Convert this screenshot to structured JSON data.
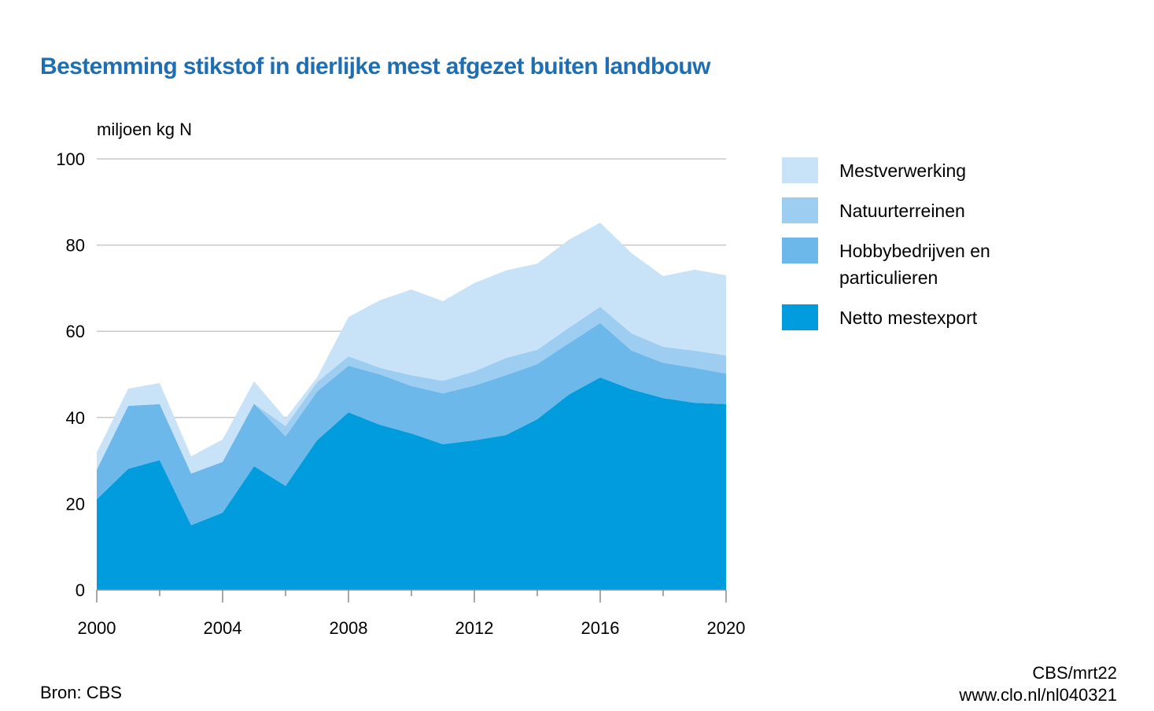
{
  "chart_data": {
    "type": "area",
    "stacked": true,
    "title": "Bestemming stikstof in dierlijke mest afgezet buiten landbouw",
    "ylabel": "miljoen kg N",
    "xlabel": "",
    "x": [
      2000,
      2001,
      2002,
      2003,
      2004,
      2005,
      2006,
      2007,
      2008,
      2009,
      2010,
      2011,
      2012,
      2013,
      2014,
      2015,
      2016,
      2017,
      2018,
      2019,
      2020
    ],
    "xlim": [
      2000,
      2020
    ],
    "ylim": [
      0,
      100
    ],
    "x_ticks": [
      "2000",
      "2004",
      "2008",
      "2012",
      "2016",
      "2020"
    ],
    "y_ticks": [
      "0",
      "20",
      "40",
      "60",
      "80",
      "100"
    ],
    "grid": "horizontal",
    "legend_position": "right",
    "series": [
      {
        "name": "Netto mestexport",
        "color": "#009cde",
        "values": [
          21.0,
          28.1,
          30.1,
          15.0,
          17.9,
          28.7,
          24.1,
          34.7,
          41.2,
          38.3,
          36.3,
          33.8,
          34.7,
          35.9,
          39.6,
          45.3,
          49.3,
          46.5,
          44.5,
          43.4,
          43.1
        ]
      },
      {
        "name": "Hobbybedrijven en particulieren",
        "color": "#6cb8ea",
        "values": [
          6.9,
          14.6,
          13.0,
          12.0,
          11.8,
          14.5,
          11.5,
          11.3,
          10.8,
          11.7,
          11.0,
          11.8,
          12.7,
          13.9,
          12.8,
          11.9,
          12.6,
          9.0,
          8.2,
          8.1,
          7.1
        ]
      },
      {
        "name": "Natuurterreinen",
        "color": "#9ecdf2",
        "values": [
          0.0,
          0.0,
          0.0,
          0.0,
          0.0,
          0.0,
          2.4,
          2.2,
          2.2,
          1.5,
          2.5,
          2.9,
          3.3,
          4.0,
          3.3,
          3.6,
          3.8,
          4.0,
          3.7,
          4.0,
          4.2
        ]
      },
      {
        "name": "Mestverwerking",
        "color": "#c8e3f7",
        "values": [
          4.0,
          4.0,
          4.9,
          4.0,
          5.2,
          5.2,
          1.8,
          1.1,
          9.1,
          15.7,
          19.9,
          18.5,
          20.5,
          20.3,
          20.0,
          20.4,
          19.5,
          18.6,
          16.4,
          18.8,
          18.6
        ]
      }
    ]
  },
  "legend": {
    "items": [
      {
        "label": "Mestverwerking",
        "color": "#c8e3f7"
      },
      {
        "label": "Natuurterreinen",
        "color": "#9ecdf2"
      },
      {
        "label": "Hobbybedrijven en particulieren",
        "color": "#6cb8ea"
      },
      {
        "label": "Netto mestexport",
        "color": "#009cde"
      }
    ]
  },
  "footer": {
    "source": "Bron: CBS",
    "credit_line1": "CBS/mrt22",
    "credit_line2": "www.clo.nl/nl040321"
  }
}
